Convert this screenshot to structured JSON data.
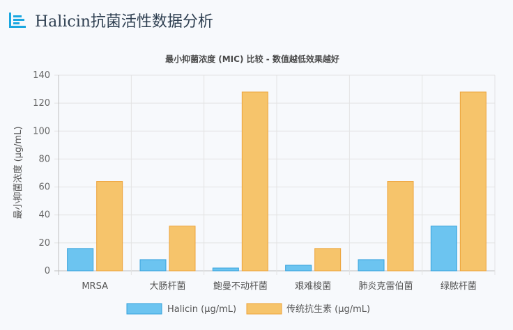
{
  "header": {
    "title": "Halicin抗菌活性数据分析",
    "icon": "bar-chart-icon",
    "accent": "#1aa7e0"
  },
  "chart_data": {
    "type": "bar",
    "title": "最小抑菌浓度 (MIC) 比较 - 数值越低效果越好",
    "xlabel": "",
    "ylabel": "最小抑菌浓度 (μg/mL)",
    "ylim": [
      0,
      140
    ],
    "yticks": [
      0,
      20,
      40,
      60,
      80,
      100,
      120,
      140
    ],
    "grid": true,
    "legend": "bottom",
    "categories": [
      "MRSA",
      "大肠杆菌",
      "鲍曼不动杆菌",
      "艰难梭菌",
      "肺炎克雷伯菌",
      "绿脓杆菌"
    ],
    "series": [
      {
        "name": "Halicin (μg/mL)",
        "values": [
          16,
          8,
          2,
          4,
          8,
          32
        ],
        "color": "#6cc4f0",
        "border": "#36a2dc"
      },
      {
        "name": "传统抗生素 (μg/mL)",
        "values": [
          64,
          32,
          128,
          16,
          64,
          128
        ],
        "color": "#f6c46b",
        "border": "#eda33a"
      }
    ]
  }
}
